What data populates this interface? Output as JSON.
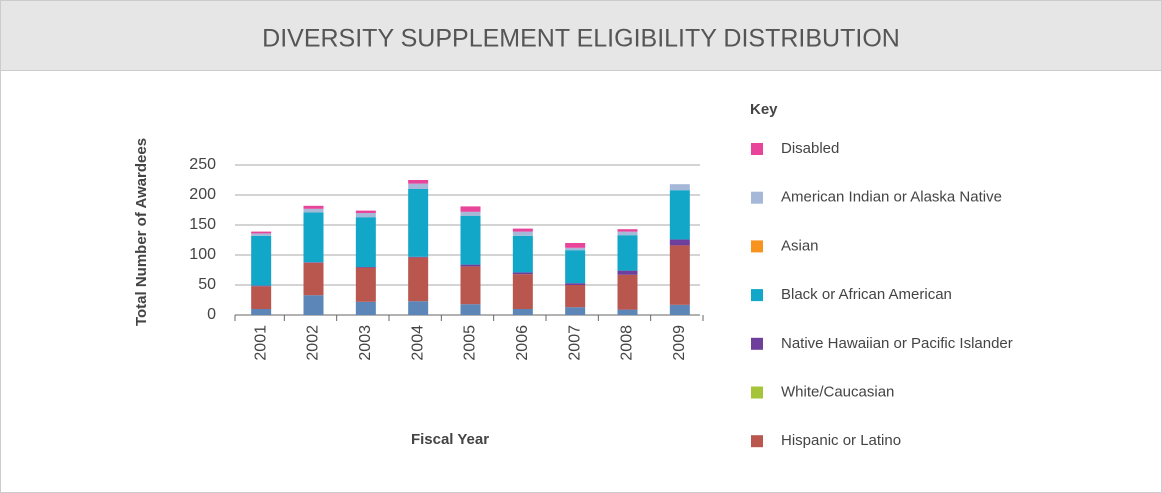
{
  "chart_data": {
    "type": "stacked_bar",
    "title": "DIVERSITY SUPPLEMENT ELIGIBILITY DISTRIBUTION",
    "x_label": "Fiscal Year",
    "y_label": "Total Number of Awardees",
    "legend_title": "Key",
    "categories": [
      "2001",
      "2002",
      "2003",
      "2004",
      "2005",
      "2006",
      "2007",
      "2008",
      "2009"
    ],
    "series": [
      {
        "name": null,
        "color": "#5b86b7",
        "values": [
          10,
          33,
          22,
          23,
          18,
          10,
          13,
          9,
          17
        ]
      },
      {
        "name": "Hispanic or Latino",
        "color": "#b9574f",
        "values": [
          38,
          54,
          57,
          73,
          63,
          58,
          37,
          58,
          99
        ]
      },
      {
        "name": "White/Caucasian",
        "color": "#a6c43a",
        "values": [
          0,
          0,
          0,
          0,
          0,
          0,
          0,
          0,
          0
        ]
      },
      {
        "name": "Native Hawaiian or Pacific Islander",
        "color": "#6f3f9c",
        "values": [
          1,
          1,
          1,
          1,
          3,
          3,
          3,
          7,
          10
        ]
      },
      {
        "name": "Black or African American",
        "color": "#12a6c9",
        "values": [
          83,
          83,
          83,
          113,
          81,
          61,
          55,
          59,
          82
        ]
      },
      {
        "name": "Asian",
        "color": "#f7941d",
        "values": [
          0,
          0,
          0,
          0,
          0,
          0,
          0,
          0,
          0
        ]
      },
      {
        "name": "American Indian or Alaska Native",
        "color": "#a5b8d8",
        "values": [
          4,
          6,
          7,
          9,
          7,
          7,
          4,
          6,
          10
        ]
      },
      {
        "name": "Disabled",
        "color": "#e8449a",
        "values": [
          3,
          5,
          4,
          6,
          9,
          5,
          8,
          4,
          0
        ]
      }
    ],
    "ylim": [
      0,
      250
    ],
    "yticks": [
      0,
      50,
      100,
      150,
      200,
      250
    ],
    "grid": true
  }
}
